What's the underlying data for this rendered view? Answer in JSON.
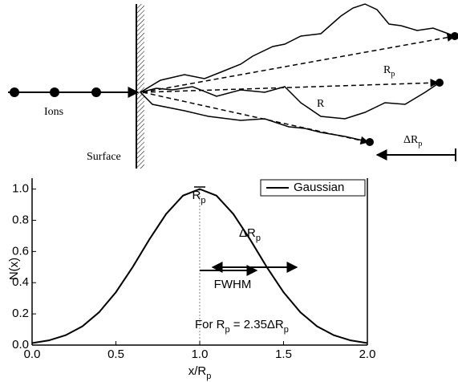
{
  "diagram": {
    "ions": "Ions",
    "surface": "Surface",
    "rp": {
      "main": "R",
      "sub": "p"
    },
    "r": "R",
    "delta_rp": {
      "main": "ΔR",
      "sub": "p"
    }
  },
  "chart_data": {
    "type": "line",
    "xlabel": {
      "main": "x/R",
      "sub": "p"
    },
    "ylabel": "N(x)",
    "x": [
      0,
      0.1,
      0.2,
      0.3,
      0.4,
      0.5,
      0.6,
      0.7,
      0.8,
      0.9,
      1.0,
      1.1,
      1.2,
      1.3,
      1.4,
      1.5,
      1.6,
      1.7,
      1.8,
      1.9,
      2.0
    ],
    "series": [
      {
        "name": "Gaussian",
        "color": "#000000",
        "values": [
          0.013,
          0.03,
          0.063,
          0.12,
          0.211,
          0.339,
          0.5,
          0.678,
          0.841,
          0.958,
          1.0,
          0.958,
          0.841,
          0.678,
          0.5,
          0.339,
          0.211,
          0.12,
          0.063,
          0.03,
          0.013
        ]
      }
    ],
    "xlim": [
      0,
      2
    ],
    "ylim": [
      0,
      1.07
    ],
    "xticks": [
      {
        "value": 0,
        "label": "0.0"
      },
      {
        "value": 0.5,
        "label": "0.5"
      },
      {
        "value": 1,
        "label": "1.0"
      },
      {
        "value": 1.5,
        "label": "1.5"
      },
      {
        "value": 2,
        "label": "2.0"
      }
    ],
    "yticks": [
      {
        "value": 0,
        "label": "0.0"
      },
      {
        "value": 0.2,
        "label": "0.2"
      },
      {
        "value": 0.4,
        "label": "0.4"
      },
      {
        "value": 0.6,
        "label": "0.6"
      },
      {
        "value": 0.8,
        "label": "0.8"
      },
      {
        "value": 1,
        "label": "1.0"
      }
    ],
    "center_label": {
      "main": "R",
      "sub": "p"
    },
    "delta_label": {
      "main": "ΔR",
      "sub": "p"
    },
    "fwhm_label": "FWHM",
    "formula": [
      "For R",
      "p",
      " = 2.35ΔR",
      "p"
    ],
    "legend": "upper right"
  }
}
